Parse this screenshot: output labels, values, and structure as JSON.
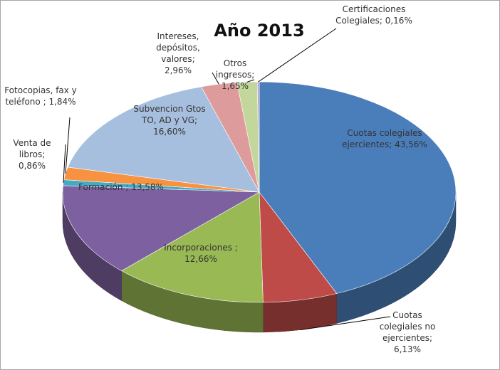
{
  "chart_data": {
    "type": "pie3d",
    "title": "Año 2013",
    "categories": [
      "Cuotas colegiales ejercientes;",
      "Cuotas colegiales no ejercientes;",
      "Incorporaciones ;",
      "Formación ;",
      "Venta de libros;",
      "Fotocopias, fax y teléfono ;",
      "Subvencion Gtos TO, AD y VG;",
      "Intereses, depósitos, valores;",
      "Otros ingresos;",
      "Certificaciones Colegiales;"
    ],
    "values": [
      43.56,
      6.13,
      12.66,
      13.58,
      0.86,
      1.84,
      16.6,
      2.96,
      1.65,
      0.16
    ],
    "value_labels": [
      "43,56%",
      "6,13%",
      "12,66%",
      "13,58%",
      "0,86%",
      "1,84%",
      "16,60%",
      "2,96%",
      "1,65%",
      "0,16%"
    ],
    "colors": [
      "#4a7ebb",
      "#be4b48",
      "#98b954",
      "#7d60a0",
      "#46aac5",
      "#f69240",
      "#a7bfde",
      "#dd9c9b",
      "#c3d69b",
      "#b3a2c7"
    ]
  }
}
